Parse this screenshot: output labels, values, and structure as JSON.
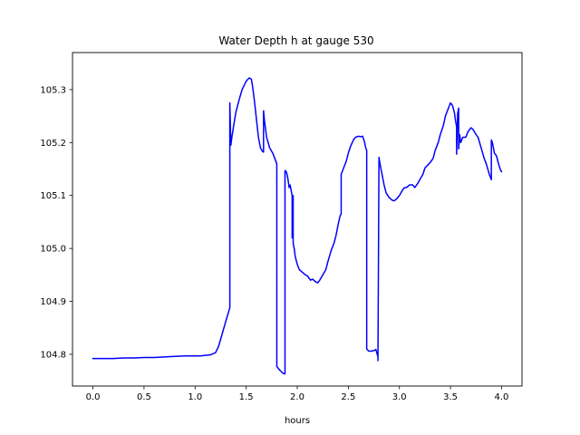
{
  "chart_data": {
    "type": "line",
    "title": "Water Depth h at gauge 530",
    "xlabel": "hours",
    "ylabel": "",
    "xlim": [
      -0.2,
      4.2
    ],
    "ylim": [
      104.74,
      105.37
    ],
    "xticks": [
      0.0,
      0.5,
      1.0,
      1.5,
      2.0,
      2.5,
      3.0,
      3.5,
      4.0
    ],
    "xtick_labels": [
      "0.0",
      "0.5",
      "1.0",
      "1.5",
      "2.0",
      "2.5",
      "3.0",
      "3.5",
      "4.0"
    ],
    "yticks": [
      104.8,
      104.9,
      105.0,
      105.1,
      105.2,
      105.3
    ],
    "ytick_labels": [
      "104.8",
      "104.9",
      "105.0",
      "105.1",
      "105.2",
      "105.3"
    ],
    "grid": false,
    "legend": "none",
    "series": [
      {
        "color": "#0000ff",
        "x": [
          0.0,
          0.1,
          0.2,
          0.3,
          0.4,
          0.5,
          0.6,
          0.7,
          0.8,
          0.9,
          1.0,
          1.05,
          1.1,
          1.15,
          1.2,
          1.23,
          1.26,
          1.3,
          1.34,
          1.34,
          1.35,
          1.36,
          1.38,
          1.4,
          1.43,
          1.46,
          1.5,
          1.53,
          1.55,
          1.56,
          1.58,
          1.6,
          1.62,
          1.64,
          1.66,
          1.67,
          1.67,
          1.68,
          1.7,
          1.73,
          1.76,
          1.78,
          1.8,
          1.8,
          1.82,
          1.84,
          1.86,
          1.88,
          1.88,
          1.89,
          1.9,
          1.91,
          1.92,
          1.93,
          1.94,
          1.95,
          1.95,
          1.96,
          1.96,
          1.97,
          1.98,
          2.0,
          2.02,
          2.05,
          2.08,
          2.1,
          2.13,
          2.15,
          2.18,
          2.2,
          2.22,
          2.25,
          2.28,
          2.3,
          2.33,
          2.36,
          2.38,
          2.4,
          2.42,
          2.43,
          2.43,
          2.45,
          2.48,
          2.5,
          2.52,
          2.55,
          2.57,
          2.6,
          2.62,
          2.64,
          2.66,
          2.67,
          2.68,
          2.68,
          2.7,
          2.72,
          2.75,
          2.77,
          2.79,
          2.79,
          2.8,
          2.81,
          2.83,
          2.85,
          2.87,
          2.9,
          2.93,
          2.95,
          2.98,
          3.0,
          3.03,
          3.05,
          3.07,
          3.1,
          3.13,
          3.15,
          3.18,
          3.2,
          3.23,
          3.25,
          3.28,
          3.3,
          3.33,
          3.35,
          3.38,
          3.4,
          3.43,
          3.45,
          3.48,
          3.5,
          3.52,
          3.54,
          3.55,
          3.56,
          3.56,
          3.57,
          3.58,
          3.58,
          3.59,
          3.6,
          3.62,
          3.65,
          3.67,
          3.7,
          3.72,
          3.75,
          3.77,
          3.8,
          3.83,
          3.85,
          3.88,
          3.9,
          3.9,
          3.91,
          3.93,
          3.95,
          3.97,
          3.99,
          4.0
        ],
        "y": [
          104.792,
          104.792,
          104.792,
          104.793,
          104.793,
          104.794,
          104.794,
          104.795,
          104.796,
          104.797,
          104.797,
          104.797,
          104.798,
          104.799,
          104.803,
          104.815,
          104.835,
          104.862,
          104.888,
          105.275,
          105.195,
          105.21,
          105.235,
          105.258,
          105.28,
          105.3,
          105.316,
          105.322,
          105.32,
          105.31,
          105.28,
          105.245,
          105.21,
          105.19,
          105.183,
          105.182,
          105.26,
          105.24,
          105.21,
          105.19,
          105.18,
          105.17,
          105.16,
          104.777,
          104.772,
          104.768,
          104.764,
          104.763,
          105.147,
          105.146,
          105.14,
          105.13,
          105.115,
          105.12,
          105.11,
          105.1,
          105.02,
          105.1,
          105.01,
          105.0,
          104.985,
          104.97,
          104.96,
          104.955,
          104.95,
          104.948,
          104.94,
          104.942,
          104.937,
          104.935,
          104.94,
          104.95,
          104.96,
          104.975,
          104.995,
          105.01,
          105.025,
          105.045,
          105.062,
          105.065,
          105.14,
          105.15,
          105.165,
          105.18,
          105.192,
          105.205,
          105.21,
          105.212,
          105.211,
          105.212,
          105.2,
          105.19,
          105.185,
          104.81,
          104.806,
          104.806,
          104.807,
          104.809,
          104.795,
          104.788,
          105.172,
          105.16,
          105.14,
          105.12,
          105.105,
          105.096,
          105.091,
          105.09,
          105.095,
          105.1,
          105.11,
          105.115,
          105.115,
          105.12,
          105.12,
          105.115,
          105.123,
          105.13,
          105.14,
          105.152,
          105.158,
          105.162,
          105.17,
          105.185,
          105.2,
          105.215,
          105.232,
          105.25,
          105.265,
          105.275,
          105.27,
          105.255,
          105.24,
          105.23,
          105.178,
          105.255,
          105.265,
          105.188,
          105.215,
          105.2,
          105.21,
          105.21,
          105.22,
          105.228,
          105.225,
          105.215,
          105.21,
          105.19,
          105.17,
          105.16,
          105.14,
          105.13,
          105.205,
          105.2,
          105.18,
          105.175,
          105.16,
          105.148,
          105.145
        ]
      }
    ]
  }
}
